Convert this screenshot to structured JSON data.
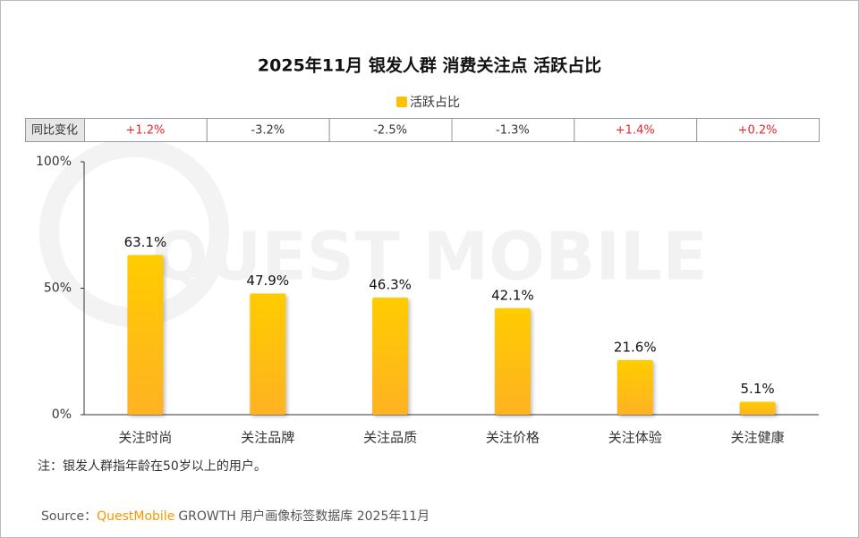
{
  "chart_data": {
    "type": "bar",
    "title": "2025年11月 银发人群 消费关注点 活跃占比",
    "categories": [
      "关注时尚",
      "关注品牌",
      "关注品质",
      "关注价格",
      "关注体验",
      "关注健康"
    ],
    "series": [
      {
        "name": "活跃占比",
        "color": "#ffc000",
        "values": [
          63.1,
          47.9,
          46.3,
          42.1,
          21.6,
          5.1
        ],
        "value_labels": [
          "63.1%",
          "47.9%",
          "46.3%",
          "42.1%",
          "21.6%",
          "5.1%"
        ]
      }
    ],
    "ylim": [
      0,
      100
    ],
    "yticks": [
      {
        "value": 0,
        "label": "0%"
      },
      {
        "value": 50,
        "label": "50%"
      },
      {
        "value": 100,
        "label": "100%"
      }
    ],
    "legend": "top",
    "yoy": {
      "label": "同比变化",
      "cells": [
        "+1.2%",
        "-3.2%",
        "-2.5%",
        "-1.3%",
        "+1.4%",
        "+0.2%"
      ],
      "colors": [
        "#e8262b",
        "#333333",
        "#333333",
        "#333333",
        "#e8262b",
        "#e8262b"
      ]
    },
    "note": "注：银发人群指年龄在50岁以上的用户。",
    "source": {
      "prefix": "Source：",
      "brand": "QuestMobile",
      "text": "GROWTH 用户画像标签数据库 2025年11月"
    },
    "watermark": "QUEST MOBILE"
  }
}
